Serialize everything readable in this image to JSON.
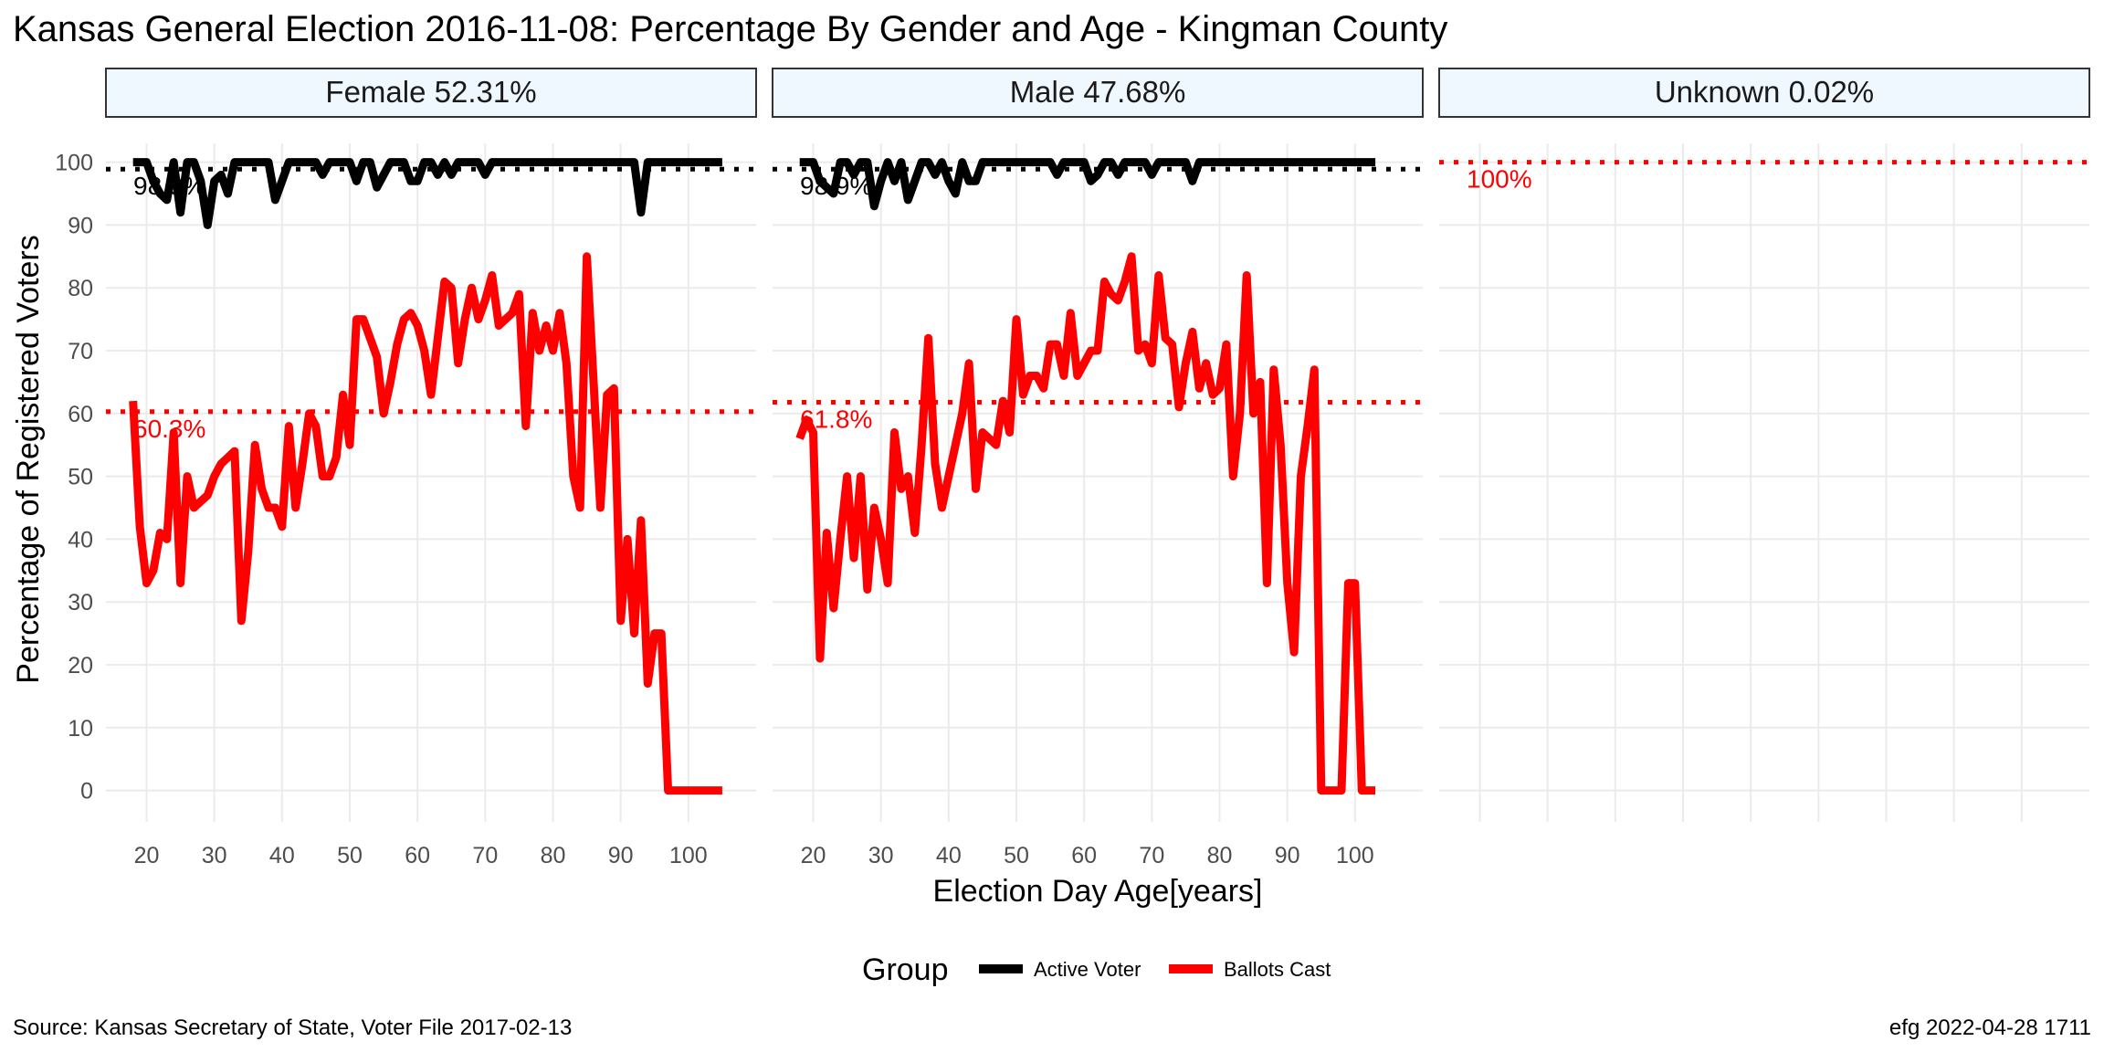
{
  "chart_data": {
    "type": "line",
    "title": "Kansas General Election 2016-11-08:  Percentage By Gender and Age - Kingman County",
    "xlabel": "Election Day Age[years]",
    "ylabel": "Percentage of Registered Voters",
    "xlim": [
      14,
      110
    ],
    "ylim": [
      -5,
      103
    ],
    "x_ticks": [
      20,
      30,
      40,
      50,
      60,
      70,
      80,
      90,
      100
    ],
    "y_ticks": [
      0,
      10,
      20,
      30,
      40,
      50,
      60,
      70,
      80,
      90,
      100
    ],
    "grid": true,
    "legend": {
      "title": "Group",
      "position": "bottom",
      "entries": [
        {
          "label": "Active Voter",
          "color": "#000000"
        },
        {
          "label": "Ballots Cast",
          "color": "#ff0000"
        }
      ]
    },
    "colors": {
      "active": "#000000",
      "ballots": "#ff0000",
      "strip_fill": "#f0f8ff",
      "grid": "#ebebeb"
    },
    "panels": [
      {
        "strip": "Female 52.31%",
        "show_x_axis": true,
        "active_ref": {
          "value": 98.9,
          "label": "98.9%"
        },
        "ballots_ref": {
          "value": 60.3,
          "label": "60.3%"
        },
        "series": [
          {
            "name": "Active Voter",
            "x": [
              18,
              19,
              20,
              21,
              22,
              23,
              24,
              25,
              26,
              27,
              28,
              29,
              30,
              31,
              32,
              33,
              34,
              35,
              36,
              37,
              38,
              39,
              40,
              41,
              42,
              43,
              44,
              45,
              46,
              47,
              48,
              49,
              50,
              51,
              52,
              53,
              54,
              55,
              56,
              57,
              58,
              59,
              60,
              61,
              62,
              63,
              64,
              65,
              66,
              67,
              68,
              69,
              70,
              71,
              72,
              73,
              74,
              75,
              76,
              77,
              78,
              79,
              80,
              81,
              82,
              83,
              84,
              85,
              86,
              87,
              88,
              89,
              90,
              91,
              92,
              93,
              94,
              95,
              96,
              97,
              98,
              99,
              100,
              101,
              102,
              103,
              104,
              105
            ],
            "y": [
              100,
              100,
              100,
              97,
              95,
              94,
              100,
              92,
              100,
              100,
              97,
              90,
              97,
              98,
              95,
              100,
              100,
              100,
              100,
              100,
              100,
              94,
              97,
              100,
              100,
              100,
              100,
              100,
              98,
              100,
              100,
              100,
              100,
              97,
              100,
              100,
              96,
              98,
              100,
              100,
              100,
              97,
              97,
              100,
              100,
              98,
              100,
              98,
              100,
              100,
              100,
              100,
              98,
              100,
              100,
              100,
              100,
              100,
              100,
              100,
              100,
              100,
              100,
              100,
              100,
              100,
              100,
              100,
              100,
              100,
              100,
              100,
              100,
              100,
              100,
              92,
              100,
              100,
              100,
              100,
              100,
              100,
              100,
              100,
              100,
              100,
              100,
              100
            ]
          },
          {
            "name": "Ballots Cast",
            "x": [
              18,
              19,
              20,
              21,
              22,
              23,
              24,
              25,
              26,
              27,
              28,
              29,
              30,
              31,
              32,
              33,
              34,
              35,
              36,
              37,
              38,
              39,
              40,
              41,
              42,
              43,
              44,
              45,
              46,
              47,
              48,
              49,
              50,
              51,
              52,
              53,
              54,
              55,
              56,
              57,
              58,
              59,
              60,
              61,
              62,
              63,
              64,
              65,
              66,
              67,
              68,
              69,
              70,
              71,
              72,
              73,
              74,
              75,
              76,
              77,
              78,
              79,
              80,
              81,
              82,
              83,
              84,
              85,
              86,
              87,
              88,
              89,
              90,
              91,
              92,
              93,
              94,
              95,
              96,
              97,
              98,
              99,
              100,
              101,
              102,
              103,
              104,
              105
            ],
            "y": [
              62,
              42,
              33,
              35,
              41,
              40,
              57,
              33,
              50,
              45,
              46,
              47,
              50,
              52,
              53,
              54,
              27,
              38,
              55,
              48,
              45,
              45,
              42,
              58,
              45,
              52,
              60,
              58,
              50,
              50,
              53,
              63,
              55,
              75,
              75,
              72,
              69,
              60,
              65,
              71,
              75,
              76,
              74,
              70,
              63,
              72,
              81,
              80,
              68,
              75,
              80,
              75,
              78,
              82,
              74,
              75,
              76,
              79,
              58,
              76,
              70,
              74,
              70,
              76,
              68,
              50,
              45,
              85,
              65,
              45,
              63,
              64,
              27,
              40,
              25,
              43,
              17,
              25,
              25,
              0,
              0,
              0,
              0,
              0,
              0,
              0,
              0,
              0
            ]
          }
        ]
      },
      {
        "strip": "Male 47.68%",
        "show_x_axis": true,
        "active_ref": {
          "value": 98.9,
          "label": "98.9%"
        },
        "ballots_ref": {
          "value": 61.8,
          "label": "61.8%"
        },
        "series": [
          {
            "name": "Active Voter",
            "x": [
              18,
              19,
              20,
              21,
              22,
              23,
              24,
              25,
              26,
              27,
              28,
              29,
              30,
              31,
              32,
              33,
              34,
              35,
              36,
              37,
              38,
              39,
              40,
              41,
              42,
              43,
              44,
              45,
              46,
              47,
              48,
              49,
              50,
              51,
              52,
              53,
              54,
              55,
              56,
              57,
              58,
              59,
              60,
              61,
              62,
              63,
              64,
              65,
              66,
              67,
              68,
              69,
              70,
              71,
              72,
              73,
              74,
              75,
              76,
              77,
              78,
              79,
              80,
              81,
              82,
              83,
              84,
              85,
              86,
              87,
              88,
              89,
              90,
              91,
              92,
              93,
              94,
              95,
              96,
              97,
              98,
              99,
              100,
              101,
              102,
              103
            ],
            "y": [
              100,
              100,
              100,
              97,
              96,
              95,
              100,
              100,
              98,
              100,
              100,
              93,
              97,
              100,
              97,
              100,
              94,
              97,
              100,
              100,
              98,
              100,
              97,
              95,
              100,
              97,
              97,
              100,
              100,
              100,
              100,
              100,
              100,
              100,
              100,
              100,
              100,
              100,
              98,
              100,
              100,
              100,
              100,
              97,
              98,
              100,
              100,
              98,
              100,
              100,
              100,
              100,
              98,
              100,
              100,
              100,
              100,
              100,
              97,
              100,
              100,
              100,
              100,
              100,
              100,
              100,
              100,
              100,
              100,
              100,
              100,
              100,
              100,
              100,
              100,
              100,
              100,
              100,
              100,
              100,
              100,
              100,
              100,
              100,
              100,
              100
            ]
          },
          {
            "name": "Ballots Cast",
            "x": [
              18,
              19,
              20,
              21,
              22,
              23,
              24,
              25,
              26,
              27,
              28,
              29,
              30,
              31,
              32,
              33,
              34,
              35,
              36,
              37,
              38,
              39,
              40,
              41,
              42,
              43,
              44,
              45,
              46,
              47,
              48,
              49,
              50,
              51,
              52,
              53,
              54,
              55,
              56,
              57,
              58,
              59,
              60,
              61,
              62,
              63,
              64,
              65,
              66,
              67,
              68,
              69,
              70,
              71,
              72,
              73,
              74,
              75,
              76,
              77,
              78,
              79,
              80,
              81,
              82,
              83,
              84,
              85,
              86,
              87,
              88,
              89,
              90,
              91,
              92,
              93,
              94,
              95,
              96,
              97,
              98,
              99,
              100,
              101,
              102,
              103
            ],
            "y": [
              56,
              59,
              57,
              21,
              41,
              29,
              40,
              50,
              37,
              50,
              32,
              45,
              40,
              33,
              57,
              48,
              50,
              41,
              55,
              72,
              52,
              45,
              50,
              55,
              60,
              68,
              48,
              57,
              56,
              55,
              62,
              57,
              75,
              63,
              66,
              66,
              64,
              71,
              71,
              66,
              76,
              66,
              68,
              70,
              70,
              81,
              79,
              78,
              81,
              85,
              70,
              71,
              68,
              82,
              72,
              71,
              61,
              68,
              73,
              64,
              68,
              63,
              64,
              71,
              50,
              60,
              82,
              60,
              65,
              33,
              67,
              55,
              33,
              22,
              50,
              58,
              67,
              0,
              0,
              0,
              0,
              33,
              33,
              0,
              0,
              0
            ]
          }
        ]
      },
      {
        "strip": "Unknown 0.02%",
        "show_x_axis": false,
        "active_ref": null,
        "ballots_ref": {
          "value": 100,
          "label": "100%"
        },
        "series": []
      }
    ]
  },
  "footer": {
    "source": "Source:  Kansas Secretary of State, Voter File  2017-02-13",
    "stamp": "efg 2022-04-28 1711"
  }
}
